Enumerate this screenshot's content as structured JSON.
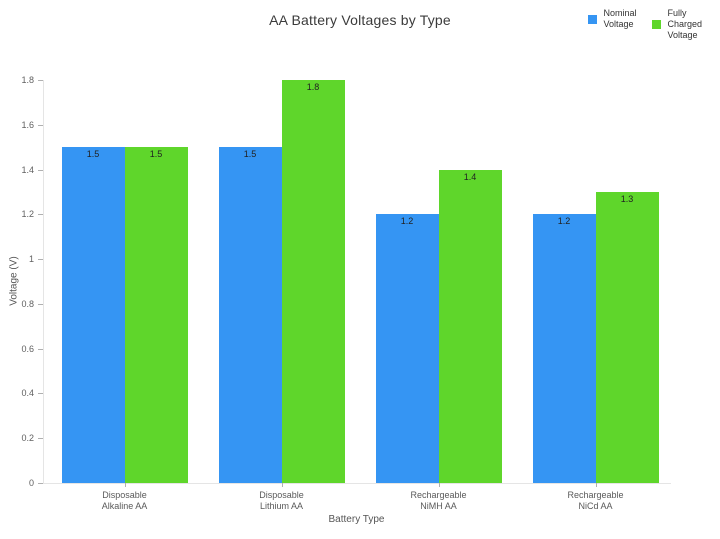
{
  "title": "AA Battery Voltages by Type",
  "legend": {
    "position": "top-right",
    "items": [
      {
        "label": "Nominal\nVoltage",
        "color": "#3595F3"
      },
      {
        "label": "Fully\nCharged\nVoltage",
        "color": "#5FD62B"
      }
    ]
  },
  "chart_data": {
    "type": "bar",
    "title": "AA Battery Voltages by Type",
    "xlabel": "Battery Type",
    "ylabel": "Voltage (V)",
    "categories": [
      "Disposable\nAlkaline AA",
      "Disposable\nLithium AA",
      "Rechargeable\nNiMH AA",
      "Rechargeable\nNiCd AA"
    ],
    "series": [
      {
        "name": "Nominal Voltage",
        "color": "#3595F3",
        "values": [
          1.5,
          1.5,
          1.2,
          1.2
        ]
      },
      {
        "name": "Fully Charged Voltage",
        "color": "#5FD62B",
        "values": [
          1.5,
          1.8,
          1.4,
          1.3
        ]
      }
    ],
    "ylim": [
      0,
      1.8
    ],
    "ytick_labels": [
      "0",
      "0.2",
      "0.4",
      "0.6",
      "0.8",
      "1",
      "1.2",
      "1.4",
      "1.6",
      "1.8"
    ],
    "bar_value_labels": true,
    "grid": false,
    "legend_position": "top-right"
  }
}
